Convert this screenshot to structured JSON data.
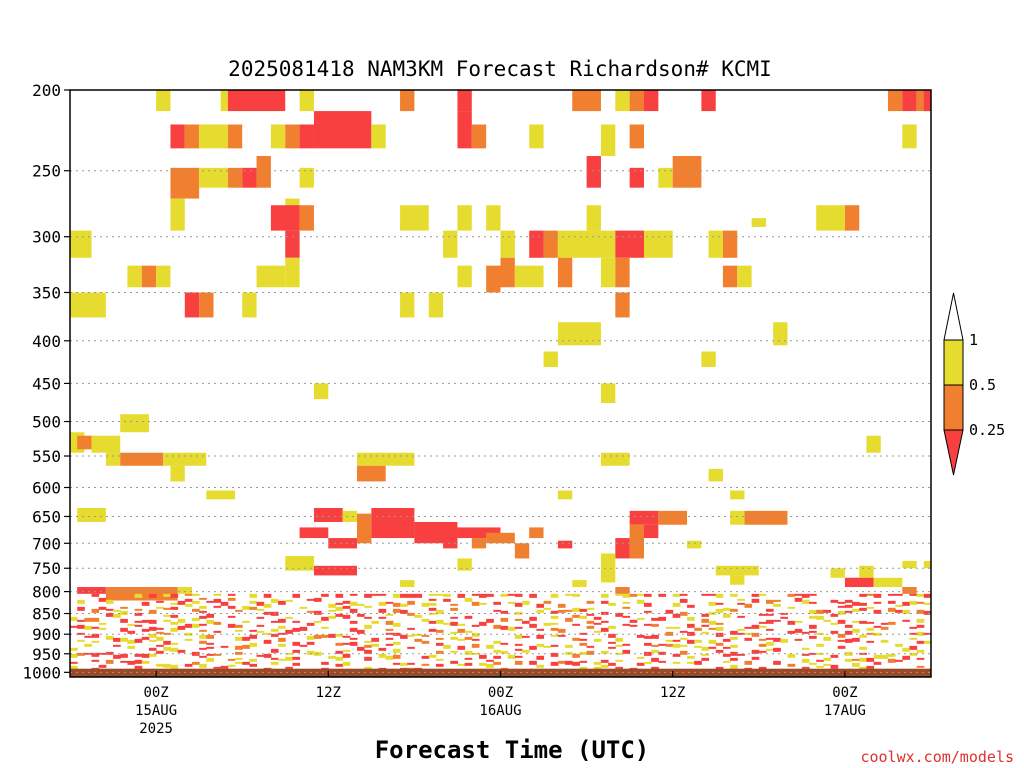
{
  "chart_data": {
    "type": "heatmap",
    "title": "2025081418 NAM3KM Forecast Richardson# KCMI",
    "xlabel": "Forecast Time (UTC)",
    "ylabel": "",
    "x_range_hours": [
      0,
      60
    ],
    "x_ticks": [
      {
        "hour": 6,
        "line1": "00Z",
        "line2": "15AUG",
        "line3": "2025"
      },
      {
        "hour": 18,
        "line1": "12Z",
        "line2": "",
        "line3": ""
      },
      {
        "hour": 30,
        "line1": "00Z",
        "line2": "16AUG",
        "line3": ""
      },
      {
        "hour": 42,
        "line1": "12Z",
        "line2": "",
        "line3": ""
      },
      {
        "hour": 54,
        "line1": "00Z",
        "line2": "17AUG",
        "line3": ""
      }
    ],
    "y_axis": "pressure (hPa), log scale, inverted",
    "y_range": [
      200,
      1013
    ],
    "y_ticks": [
      "200",
      "250",
      "300",
      "350",
      "400",
      "450",
      "500",
      "550",
      "600",
      "650",
      "700",
      "750",
      "800",
      "850",
      "900",
      "950",
      "1000"
    ],
    "legend": {
      "placement": "right",
      "levels": [
        "0.25",
        "0.5",
        "1"
      ],
      "bins": [
        {
          "label": "< 0.25",
          "color": "#f84040"
        },
        {
          "label": "0.25 - 0.5",
          "color": "#f08030"
        },
        {
          "label": "0.5 - 1",
          "color": "#e6dc30"
        },
        {
          "label": "> 1",
          "color": "#ffffff"
        }
      ]
    },
    "ground_color": "#9a4a26",
    "surface_pressure": 990,
    "cells": [
      {
        "t0": 6,
        "t1": 7,
        "p0": 200,
        "p1": 212,
        "c": "y"
      },
      {
        "t0": 10.5,
        "t1": 11,
        "p0": 200,
        "p1": 212,
        "c": "y"
      },
      {
        "t0": 11,
        "t1": 15,
        "p0": 200,
        "p1": 212,
        "c": "r"
      },
      {
        "t0": 16,
        "t1": 17,
        "p0": 200,
        "p1": 212,
        "c": "y"
      },
      {
        "t0": 23,
        "t1": 24,
        "p0": 200,
        "p1": 212,
        "c": "o"
      },
      {
        "t0": 27,
        "t1": 28,
        "p0": 200,
        "p1": 212,
        "c": "r"
      },
      {
        "t0": 35,
        "t1": 37,
        "p0": 200,
        "p1": 212,
        "c": "o"
      },
      {
        "t0": 38,
        "t1": 39,
        "p0": 200,
        "p1": 212,
        "c": "y"
      },
      {
        "t0": 39,
        "t1": 40,
        "p0": 200,
        "p1": 212,
        "c": "o"
      },
      {
        "t0": 40,
        "t1": 41,
        "p0": 200,
        "p1": 212,
        "c": "r"
      },
      {
        "t0": 44,
        "t1": 45,
        "p0": 200,
        "p1": 212,
        "c": "r"
      },
      {
        "t0": 57,
        "t1": 58,
        "p0": 200,
        "p1": 212,
        "c": "o"
      },
      {
        "t0": 58,
        "t1": 59,
        "p0": 200,
        "p1": 212,
        "c": "r"
      },
      {
        "t0": 59,
        "t1": 60,
        "p0": 200,
        "p1": 212,
        "c": "o"
      },
      {
        "t0": 59.5,
        "t1": 60,
        "p0": 200,
        "p1": 212,
        "c": "r"
      },
      {
        "t0": 7,
        "t1": 8,
        "p0": 220,
        "p1": 235,
        "c": "r"
      },
      {
        "t0": 8,
        "t1": 9,
        "p0": 220,
        "p1": 235,
        "c": "o"
      },
      {
        "t0": 9,
        "t1": 11,
        "p0": 220,
        "p1": 235,
        "c": "y"
      },
      {
        "t0": 11,
        "t1": 12,
        "p0": 220,
        "p1": 235,
        "c": "o"
      },
      {
        "t0": 14,
        "t1": 15,
        "p0": 220,
        "p1": 235,
        "c": "y"
      },
      {
        "t0": 15,
        "t1": 16,
        "p0": 220,
        "p1": 235,
        "c": "o"
      },
      {
        "t0": 16,
        "t1": 17,
        "p0": 220,
        "p1": 235,
        "c": "r"
      },
      {
        "t0": 17,
        "t1": 21,
        "p0": 212,
        "p1": 235,
        "c": "r"
      },
      {
        "t0": 21,
        "t1": 22,
        "p0": 220,
        "p1": 235,
        "c": "y"
      },
      {
        "t0": 27,
        "t1": 28,
        "p0": 212,
        "p1": 235,
        "c": "r"
      },
      {
        "t0": 28,
        "t1": 29,
        "p0": 220,
        "p1": 235,
        "c": "o"
      },
      {
        "t0": 32,
        "t1": 33,
        "p0": 220,
        "p1": 235,
        "c": "y"
      },
      {
        "t0": 37,
        "t1": 38,
        "p0": 220,
        "p1": 240,
        "c": "y"
      },
      {
        "t0": 39,
        "t1": 40,
        "p0": 220,
        "p1": 235,
        "c": "o"
      },
      {
        "t0": 58,
        "t1": 59,
        "p0": 220,
        "p1": 235,
        "c": "y"
      },
      {
        "t0": 7,
        "t1": 9,
        "p0": 248,
        "p1": 270,
        "c": "o"
      },
      {
        "t0": 9,
        "t1": 11,
        "p0": 248,
        "p1": 262,
        "c": "y"
      },
      {
        "t0": 11,
        "t1": 12,
        "p0": 248,
        "p1": 262,
        "c": "o"
      },
      {
        "t0": 12,
        "t1": 13,
        "p0": 248,
        "p1": 262,
        "c": "r"
      },
      {
        "t0": 13,
        "t1": 14,
        "p0": 240,
        "p1": 262,
        "c": "o"
      },
      {
        "t0": 16,
        "t1": 17,
        "p0": 248,
        "p1": 262,
        "c": "y"
      },
      {
        "t0": 36,
        "t1": 37,
        "p0": 240,
        "p1": 262,
        "c": "r"
      },
      {
        "t0": 39,
        "t1": 40,
        "p0": 248,
        "p1": 262,
        "c": "r"
      },
      {
        "t0": 41,
        "t1": 42,
        "p0": 248,
        "p1": 262,
        "c": "y"
      },
      {
        "t0": 42,
        "t1": 44,
        "p0": 240,
        "p1": 262,
        "c": "o"
      },
      {
        "t0": 15,
        "t1": 16,
        "p0": 270,
        "p1": 290,
        "c": "y"
      },
      {
        "t0": 14,
        "t1": 16,
        "p0": 275,
        "p1": 295,
        "c": "r"
      },
      {
        "t0": 16,
        "t1": 17,
        "p0": 275,
        "p1": 295,
        "c": "o"
      },
      {
        "t0": 7,
        "t1": 8,
        "p0": 270,
        "p1": 295,
        "c": "y"
      },
      {
        "t0": 23,
        "t1": 25,
        "p0": 275,
        "p1": 295,
        "c": "y"
      },
      {
        "t0": 27,
        "t1": 28,
        "p0": 275,
        "p1": 295,
        "c": "y"
      },
      {
        "t0": 29,
        "t1": 30,
        "p0": 275,
        "p1": 295,
        "c": "y"
      },
      {
        "t0": 36,
        "t1": 37,
        "p0": 275,
        "p1": 295,
        "c": "y"
      },
      {
        "t0": 47.5,
        "t1": 48.5,
        "p0": 285,
        "p1": 292,
        "c": "y"
      },
      {
        "t0": 52,
        "t1": 54,
        "p0": 275,
        "p1": 295,
        "c": "y"
      },
      {
        "t0": 54,
        "t1": 55,
        "p0": 275,
        "p1": 295,
        "c": "o"
      },
      {
        "t0": 0,
        "t1": 1.5,
        "p0": 295,
        "p1": 318,
        "c": "y"
      },
      {
        "t0": 15,
        "t1": 16,
        "p0": 295,
        "p1": 318,
        "c": "r"
      },
      {
        "t0": 26,
        "t1": 27,
        "p0": 295,
        "p1": 318,
        "c": "y"
      },
      {
        "t0": 30,
        "t1": 31,
        "p0": 295,
        "p1": 318,
        "c": "y"
      },
      {
        "t0": 32,
        "t1": 33,
        "p0": 295,
        "p1": 318,
        "c": "r"
      },
      {
        "t0": 33,
        "t1": 34,
        "p0": 295,
        "p1": 318,
        "c": "o"
      },
      {
        "t0": 34,
        "t1": 38,
        "p0": 295,
        "p1": 318,
        "c": "y"
      },
      {
        "t0": 38,
        "t1": 40,
        "p0": 295,
        "p1": 318,
        "c": "r"
      },
      {
        "t0": 40,
        "t1": 42,
        "p0": 295,
        "p1": 318,
        "c": "y"
      },
      {
        "t0": 44.5,
        "t1": 45.5,
        "p0": 295,
        "p1": 318,
        "c": "y"
      },
      {
        "t0": 45.5,
        "t1": 46.5,
        "p0": 295,
        "p1": 318,
        "c": "o"
      },
      {
        "t0": 4,
        "t1": 5,
        "p0": 325,
        "p1": 345,
        "c": "y"
      },
      {
        "t0": 5,
        "t1": 6,
        "p0": 325,
        "p1": 345,
        "c": "o"
      },
      {
        "t0": 6,
        "t1": 7,
        "p0": 325,
        "p1": 345,
        "c": "y"
      },
      {
        "t0": 13,
        "t1": 15,
        "p0": 325,
        "p1": 345,
        "c": "y"
      },
      {
        "t0": 15,
        "t1": 16,
        "p0": 318,
        "p1": 345,
        "c": "y"
      },
      {
        "t0": 27,
        "t1": 28,
        "p0": 325,
        "p1": 345,
        "c": "y"
      },
      {
        "t0": 29,
        "t1": 30,
        "p0": 325,
        "p1": 350,
        "c": "o"
      },
      {
        "t0": 30,
        "t1": 31,
        "p0": 318,
        "p1": 345,
        "c": "o"
      },
      {
        "t0": 31,
        "t1": 33,
        "p0": 325,
        "p1": 345,
        "c": "y"
      },
      {
        "t0": 34,
        "t1": 35,
        "p0": 318,
        "p1": 345,
        "c": "o"
      },
      {
        "t0": 37,
        "t1": 38,
        "p0": 318,
        "p1": 345,
        "c": "y"
      },
      {
        "t0": 38,
        "t1": 39,
        "p0": 318,
        "p1": 345,
        "c": "o"
      },
      {
        "t0": 45.5,
        "t1": 46.5,
        "p0": 325,
        "p1": 345,
        "c": "o"
      },
      {
        "t0": 46.5,
        "t1": 47.5,
        "p0": 325,
        "p1": 345,
        "c": "y"
      },
      {
        "t0": 0,
        "t1": 2.5,
        "p0": 350,
        "p1": 375,
        "c": "y"
      },
      {
        "t0": 8,
        "t1": 9,
        "p0": 350,
        "p1": 375,
        "c": "r"
      },
      {
        "t0": 9,
        "t1": 10,
        "p0": 350,
        "p1": 375,
        "c": "o"
      },
      {
        "t0": 12,
        "t1": 13,
        "p0": 350,
        "p1": 375,
        "c": "y"
      },
      {
        "t0": 23,
        "t1": 24,
        "p0": 350,
        "p1": 375,
        "c": "y"
      },
      {
        "t0": 25,
        "t1": 26,
        "p0": 350,
        "p1": 375,
        "c": "y"
      },
      {
        "t0": 38,
        "t1": 39,
        "p0": 350,
        "p1": 375,
        "c": "o"
      },
      {
        "t0": 34,
        "t1": 37,
        "p0": 380,
        "p1": 405,
        "c": "y"
      },
      {
        "t0": 49,
        "t1": 50,
        "p0": 380,
        "p1": 405,
        "c": "y"
      },
      {
        "t0": 33,
        "t1": 34,
        "p0": 412,
        "p1": 430,
        "c": "y"
      },
      {
        "t0": 44,
        "t1": 45,
        "p0": 412,
        "p1": 430,
        "c": "y"
      },
      {
        "t0": 17,
        "t1": 18,
        "p0": 450,
        "p1": 470,
        "c": "y"
      },
      {
        "t0": 37,
        "t1": 38,
        "p0": 450,
        "p1": 475,
        "c": "y"
      },
      {
        "t0": 3.5,
        "t1": 5.5,
        "p0": 490,
        "p1": 515,
        "c": "y"
      },
      {
        "t0": 0,
        "t1": 1,
        "p0": 515,
        "p1": 545,
        "c": "y"
      },
      {
        "t0": 0.5,
        "t1": 1.5,
        "p0": 520,
        "p1": 540,
        "c": "o"
      },
      {
        "t0": 1.5,
        "t1": 3.5,
        "p0": 520,
        "p1": 545,
        "c": "y"
      },
      {
        "t0": 55.5,
        "t1": 56.5,
        "p0": 520,
        "p1": 545,
        "c": "y"
      },
      {
        "t0": 2.5,
        "t1": 3.5,
        "p0": 545,
        "p1": 565,
        "c": "y"
      },
      {
        "t0": 3.5,
        "t1": 6.5,
        "p0": 545,
        "p1": 565,
        "c": "o"
      },
      {
        "t0": 6.5,
        "t1": 9.5,
        "p0": 545,
        "p1": 565,
        "c": "y"
      },
      {
        "t0": 7,
        "t1": 8,
        "p0": 565,
        "p1": 590,
        "c": "y"
      },
      {
        "t0": 20,
        "t1": 24,
        "p0": 545,
        "p1": 565,
        "c": "y"
      },
      {
        "t0": 20,
        "t1": 22,
        "p0": 565,
        "p1": 590,
        "c": "o"
      },
      {
        "t0": 37,
        "t1": 39,
        "p0": 545,
        "p1": 565,
        "c": "y"
      },
      {
        "t0": 44.5,
        "t1": 45.5,
        "p0": 570,
        "p1": 590,
        "c": "y"
      },
      {
        "t0": 9.5,
        "t1": 11.5,
        "p0": 605,
        "p1": 620,
        "c": "y"
      },
      {
        "t0": 34,
        "t1": 35,
        "p0": 605,
        "p1": 620,
        "c": "y"
      },
      {
        "t0": 46,
        "t1": 47,
        "p0": 605,
        "p1": 620,
        "c": "y"
      },
      {
        "t0": 0.5,
        "t1": 2.5,
        "p0": 635,
        "p1": 660,
        "c": "y"
      },
      {
        "t0": 17,
        "t1": 19,
        "p0": 635,
        "p1": 660,
        "c": "r"
      },
      {
        "t0": 19,
        "t1": 20,
        "p0": 640,
        "p1": 660,
        "c": "y"
      },
      {
        "t0": 20,
        "t1": 21,
        "p0": 645,
        "p1": 700,
        "c": "o"
      },
      {
        "t0": 21,
        "t1": 24,
        "p0": 635,
        "p1": 690,
        "c": "r"
      },
      {
        "t0": 24,
        "t1": 27,
        "p0": 660,
        "p1": 700,
        "c": "r"
      },
      {
        "t0": 27,
        "t1": 30,
        "p0": 670,
        "p1": 690,
        "c": "r"
      },
      {
        "t0": 29,
        "t1": 31,
        "p0": 680,
        "p1": 700,
        "c": "o"
      },
      {
        "t0": 16,
        "t1": 18,
        "p0": 670,
        "p1": 690,
        "c": "r"
      },
      {
        "t0": 18,
        "t1": 20,
        "p0": 690,
        "p1": 710,
        "c": "r"
      },
      {
        "t0": 26,
        "t1": 27,
        "p0": 690,
        "p1": 710,
        "c": "r"
      },
      {
        "t0": 28,
        "t1": 29,
        "p0": 690,
        "p1": 710,
        "c": "o"
      },
      {
        "t0": 31,
        "t1": 32,
        "p0": 700,
        "p1": 730,
        "c": "o"
      },
      {
        "t0": 32,
        "t1": 33,
        "p0": 670,
        "p1": 690,
        "c": "o"
      },
      {
        "t0": 34,
        "t1": 35,
        "p0": 695,
        "p1": 710,
        "c": "r"
      },
      {
        "t0": 39,
        "t1": 41,
        "p0": 640,
        "p1": 665,
        "c": "r"
      },
      {
        "t0": 41,
        "t1": 43,
        "p0": 640,
        "p1": 665,
        "c": "o"
      },
      {
        "t0": 39,
        "t1": 40,
        "p0": 665,
        "p1": 730,
        "c": "o"
      },
      {
        "t0": 38,
        "t1": 39,
        "p0": 690,
        "p1": 730,
        "c": "r"
      },
      {
        "t0": 40,
        "t1": 41,
        "p0": 665,
        "p1": 690,
        "c": "r"
      },
      {
        "t0": 43,
        "t1": 44,
        "p0": 695,
        "p1": 710,
        "c": "y"
      },
      {
        "t0": 47,
        "t1": 50,
        "p0": 640,
        "p1": 665,
        "c": "o"
      },
      {
        "t0": 46,
        "t1": 47,
        "p0": 640,
        "p1": 665,
        "c": "y"
      },
      {
        "t0": 15,
        "t1": 17,
        "p0": 725,
        "p1": 755,
        "c": "y"
      },
      {
        "t0": 17,
        "t1": 20,
        "p0": 745,
        "p1": 765,
        "c": "r"
      },
      {
        "t0": 27,
        "t1": 28,
        "p0": 730,
        "p1": 755,
        "c": "y"
      },
      {
        "t0": 37,
        "t1": 38,
        "p0": 720,
        "p1": 780,
        "c": "y"
      },
      {
        "t0": 45,
        "t1": 48,
        "p0": 745,
        "p1": 765,
        "c": "y"
      },
      {
        "t0": 46,
        "t1": 47,
        "p0": 765,
        "p1": 785,
        "c": "y"
      },
      {
        "t0": 53,
        "t1": 54,
        "p0": 750,
        "p1": 770,
        "c": "y"
      },
      {
        "t0": 55,
        "t1": 56,
        "p0": 745,
        "p1": 770,
        "c": "y"
      },
      {
        "t0": 54,
        "t1": 56,
        "p0": 770,
        "p1": 790,
        "c": "r"
      },
      {
        "t0": 56,
        "t1": 58,
        "p0": 770,
        "p1": 790,
        "c": "y"
      },
      {
        "t0": 58,
        "t1": 59,
        "p0": 735,
        "p1": 750,
        "c": "y"
      },
      {
        "t0": 59.5,
        "t1": 60,
        "p0": 735,
        "p1": 750,
        "c": "y"
      },
      {
        "t0": 0.5,
        "t1": 2.5,
        "p0": 790,
        "p1": 805,
        "c": "r"
      },
      {
        "t0": 2.5,
        "t1": 7.5,
        "p0": 790,
        "p1": 820,
        "c": "o"
      },
      {
        "t0": 7.5,
        "t1": 8.5,
        "p0": 790,
        "p1": 805,
        "c": "y"
      },
      {
        "t0": 23,
        "t1": 24,
        "p0": 775,
        "p1": 790,
        "c": "y"
      },
      {
        "t0": 35,
        "t1": 36,
        "p0": 775,
        "p1": 790,
        "c": "y"
      },
      {
        "t0": 38,
        "t1": 39,
        "p0": 790,
        "p1": 805,
        "c": "o"
      },
      {
        "t0": 58,
        "t1": 59,
        "p0": 790,
        "p1": 805,
        "c": "o"
      }
    ]
  },
  "credit": "coolwx.com/models"
}
